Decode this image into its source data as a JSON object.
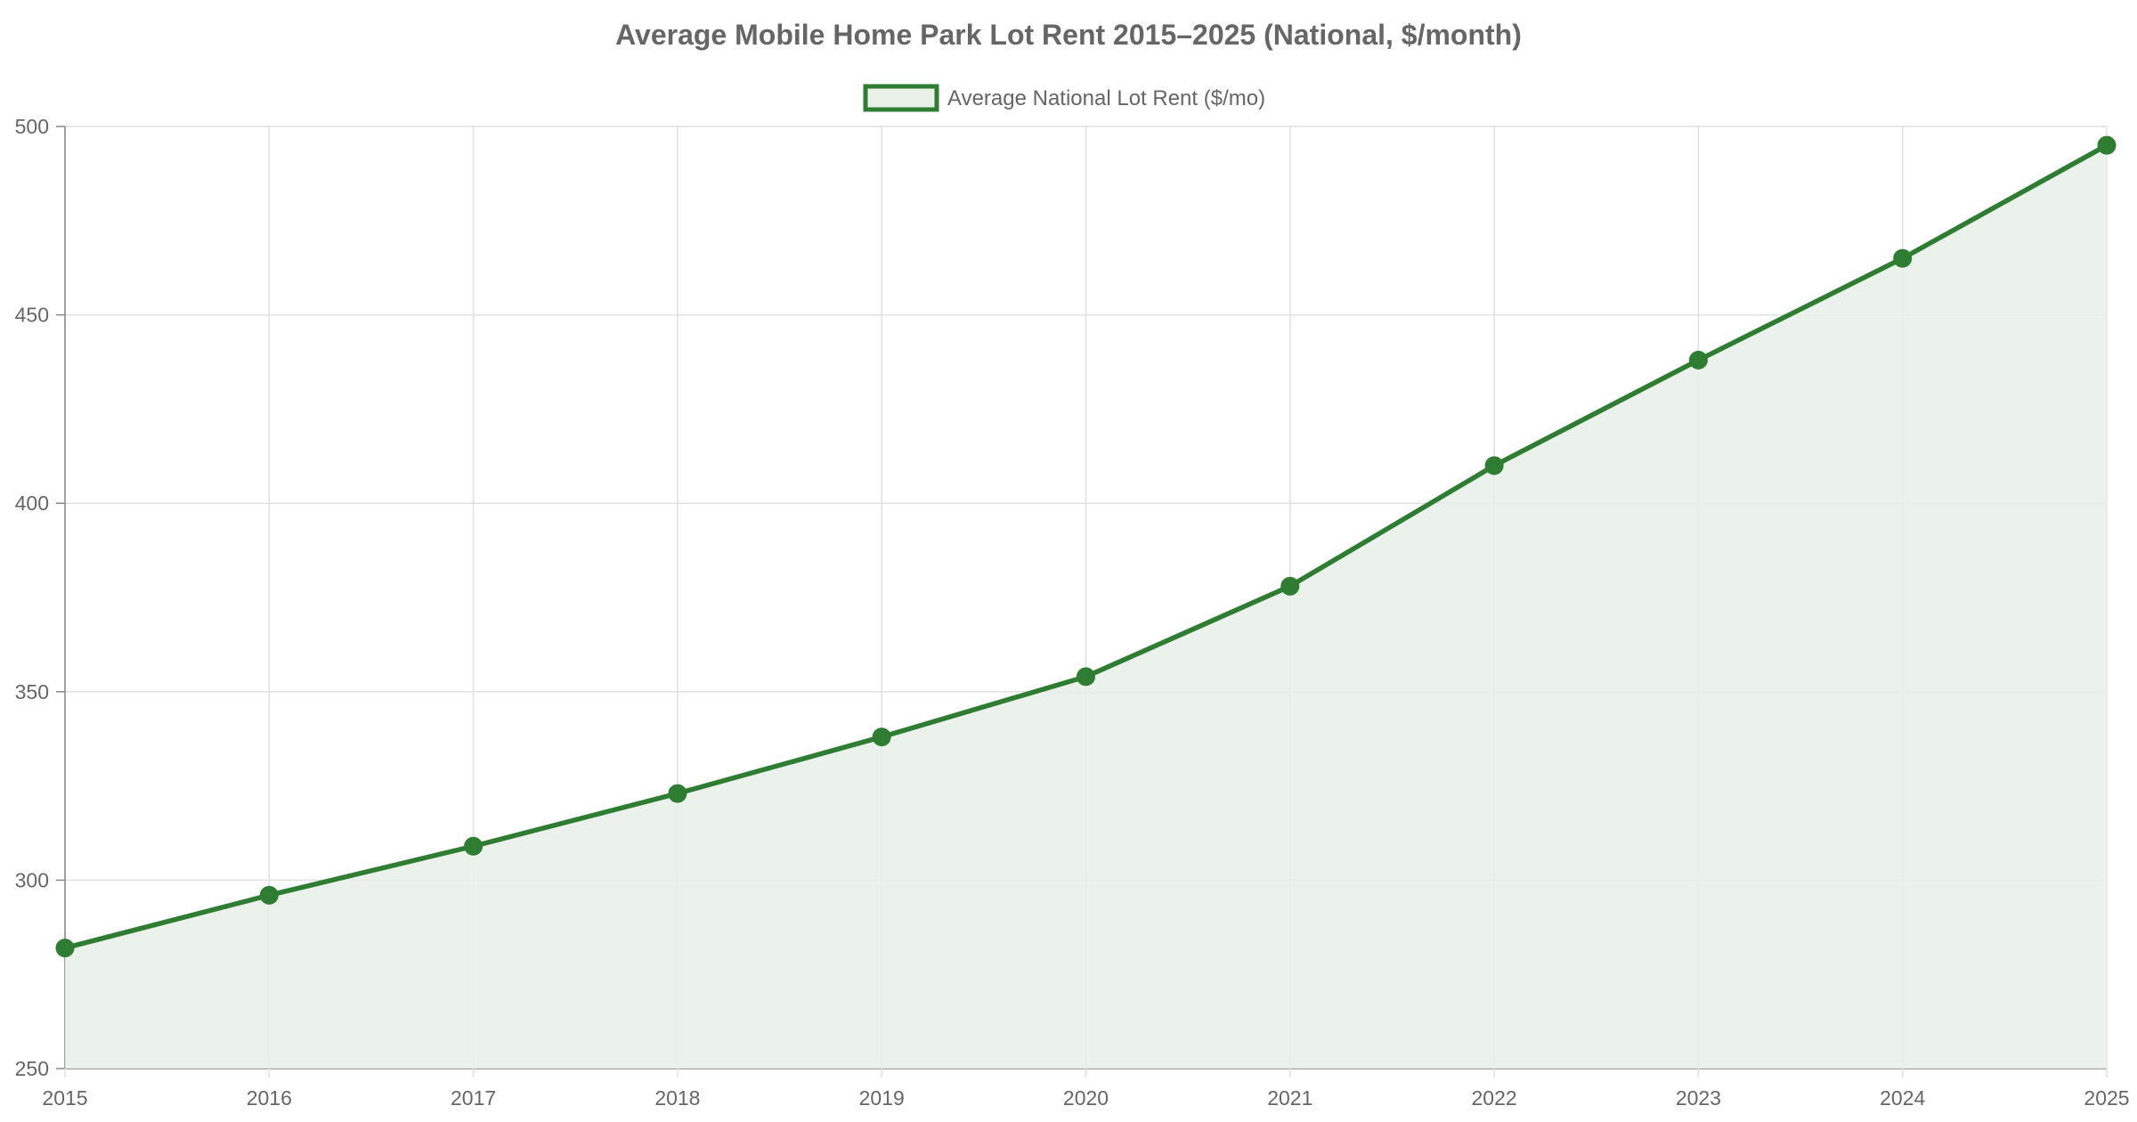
{
  "chart_data": {
    "type": "line",
    "title": "Average Mobile Home Park Lot Rent 2015–2025 (National, $/month)",
    "xlabel": "",
    "ylabel": "",
    "x": [
      "2015",
      "2016",
      "2017",
      "2018",
      "2019",
      "2020",
      "2021",
      "2022",
      "2023",
      "2024",
      "2025"
    ],
    "series": [
      {
        "name": "Average National Lot Rent ($/mo)",
        "values": [
          282,
          296,
          309,
          323,
          338,
          354,
          378,
          410,
          438,
          465,
          495
        ],
        "color": "#2e7d32",
        "fill": "#e8f0e8",
        "filled": true
      }
    ],
    "ylim": [
      250,
      500
    ],
    "yticks": [
      "250",
      "300",
      "350",
      "400",
      "450",
      "500"
    ],
    "grid": true,
    "legend_position": "top-center"
  }
}
